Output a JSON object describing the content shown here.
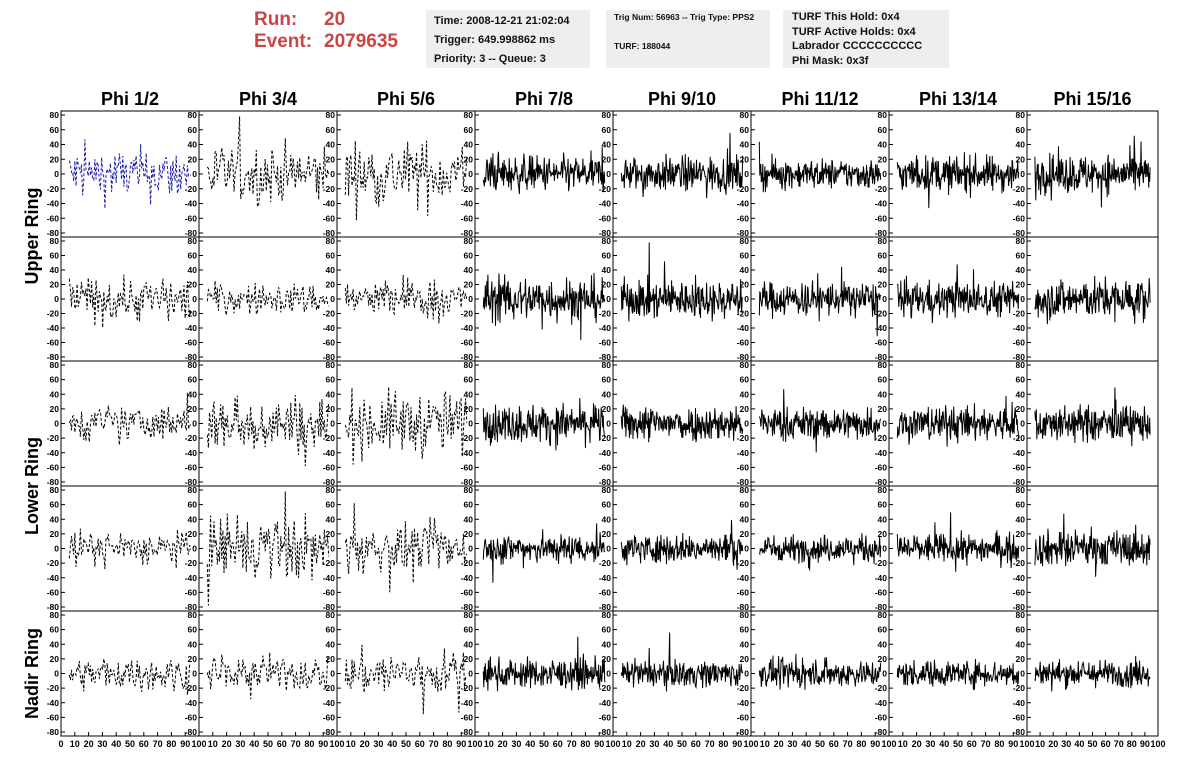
{
  "header": {
    "run_label": "Run:",
    "run_value": "20",
    "event_label": "Event:",
    "event_value": "2079635",
    "time": "Time: 2008-12-21 21:02:04",
    "trigger": "Trigger: 649.998862 ms",
    "priority": "Priority: 3 -- Queue: 3",
    "trig_num": "Trig Num: 56963 -- Trig Type: PPS2",
    "turf": "TURF: 188044",
    "turf_hold": "TURF This Hold: 0x4",
    "turf_active": "TURF Active Holds: 0x4",
    "labrador": "Labrador CCCCCCCCCC",
    "phi_mask": "Phi Mask: 0x3f"
  },
  "chart_data": {
    "type": "line",
    "columns": [
      "Phi 1/2",
      "Phi 3/4",
      "Phi 5/6",
      "Phi 7/8",
      "Phi 9/10",
      "Phi 11/12",
      "Phi 13/14",
      "Phi 15/16"
    ],
    "row_labels": [
      "Upper Ring",
      "Lower Ring",
      "Nadir Ring"
    ],
    "panel_rows": 5,
    "ylim": [
      -80,
      80
    ],
    "y_ticks": [
      "80",
      "60",
      "40",
      "20",
      "0",
      "-20",
      "-40",
      "-60",
      "-80"
    ],
    "xlim": [
      0,
      100
    ],
    "x_tick_labels": [
      "0",
      "10",
      "20",
      "30",
      "40",
      "50",
      "60",
      "70",
      "80",
      "90",
      "100"
    ],
    "dashed_columns": 3,
    "colors": {
      "trace": "#000000",
      "highlight_trace": "#1a1aaa",
      "axis": "#000000"
    },
    "highlighted_panel": {
      "row": 0,
      "col": 0
    },
    "panel_amplitude": [
      [
        18,
        20,
        22,
        12,
        12,
        10,
        12,
        13
      ],
      [
        16,
        11,
        14,
        15,
        13,
        12,
        12,
        14
      ],
      [
        12,
        20,
        22,
        13,
        12,
        11,
        12,
        12
      ],
      [
        12,
        22,
        16,
        10,
        10,
        9,
        10,
        12
      ],
      [
        11,
        12,
        16,
        10,
        9,
        9,
        9,
        9
      ]
    ]
  }
}
